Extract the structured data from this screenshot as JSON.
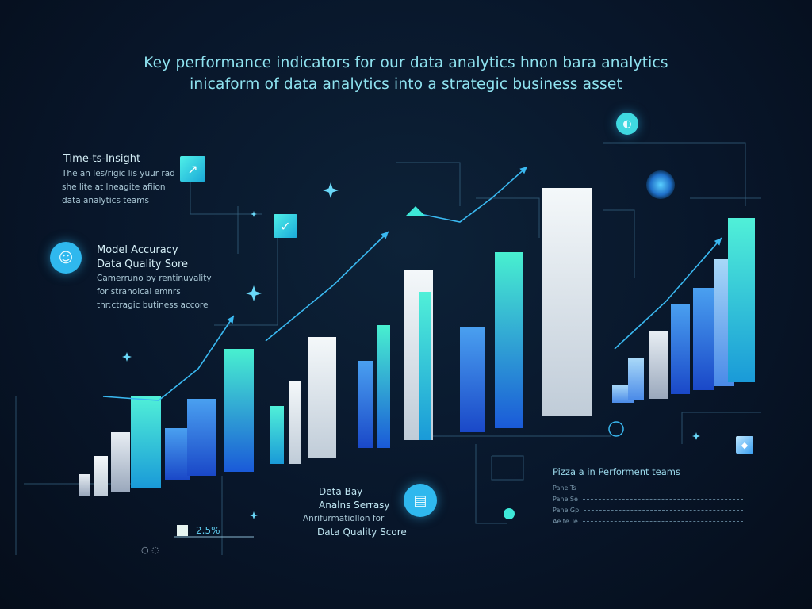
{
  "header": {
    "title_line1": "Key  performance indicators for our data analytics hnon bara analytics",
    "title_line2": "inicaform of data analytics into a strategic business asset"
  },
  "left_panel": {
    "time_to_insight": {
      "heading": "Time-ts-Insight",
      "lines": [
        "The an les/rigic lis yuur rad",
        "she lite at lneagite afiion",
        "data analytics teams"
      ]
    },
    "model_accuracy": {
      "heading1": "Model Accuracy",
      "heading2": "Data Quality Sore",
      "lines": [
        "Camerruno by rentinuvality",
        "for stranolcal emnrs",
        "thr:ctragic butiness accore"
      ]
    }
  },
  "bottom_center": {
    "line1": "Deta-Bay",
    "line2": "Analns Serrasy",
    "line3": "Anrifurmatiollon for",
    "line4": "Data Quality Score"
  },
  "bottom_left": {
    "value": "2.5%"
  },
  "bottom_right": {
    "heading": "Pizza a in Performent teams",
    "rows": [
      "Pane Ts",
      "Pane Se",
      "Pane Gp",
      "Ae te Te"
    ]
  },
  "icons": [
    "chart-tile-icon",
    "check-tile-icon",
    "user-circle-icon",
    "document-circle-icon",
    "pie-icon",
    "cube-icon",
    "sparkle-icon"
  ],
  "colors": {
    "background": "#08162a",
    "accent_teal": "#3ee8d8",
    "accent_blue": "#2f7ee8",
    "text": "#8fe3f0"
  }
}
